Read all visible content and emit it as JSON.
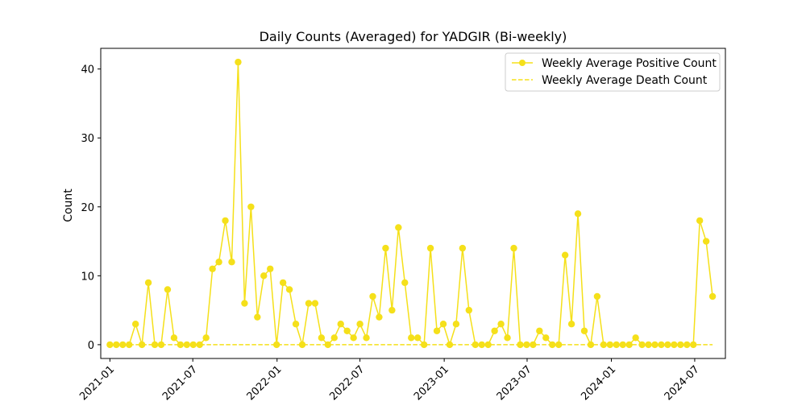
{
  "chart_data": {
    "type": "line",
    "title": "Daily Counts (Averaged) for YADGIR (Bi-weekly)",
    "xlabel": "",
    "ylabel": "Count",
    "ylim": [
      -2,
      43
    ],
    "xlim": [
      "2020-12-12",
      "2024-09-06"
    ],
    "grid": false,
    "legend_position": "top-right",
    "y_ticks": [
      0,
      10,
      20,
      30,
      40
    ],
    "x_ticks": [
      "2021-01",
      "2021-07",
      "2022-01",
      "2022-07",
      "2023-01",
      "2023-07",
      "2024-01",
      "2024-07"
    ],
    "colors": {
      "series": "#f5e01a",
      "axis": "#000000"
    },
    "start_date": "2021-01-01",
    "interval_days": 14,
    "series": [
      {
        "name": "Weekly Average Positive Count",
        "style": "solid-with-markers",
        "values": [
          0,
          0,
          0,
          0,
          3,
          0,
          9,
          0,
          0,
          8,
          1,
          0,
          0,
          0,
          0,
          1,
          11,
          12,
          18,
          12,
          41,
          6,
          20,
          4,
          10,
          11,
          0,
          9,
          8,
          3,
          0,
          6,
          6,
          1,
          0,
          1,
          3,
          2,
          1,
          3,
          1,
          7,
          4,
          14,
          5,
          17,
          9,
          1,
          1,
          0,
          14,
          2,
          3,
          0,
          3,
          14,
          5,
          0,
          0,
          0,
          2,
          3,
          1,
          14,
          0,
          0,
          0,
          2,
          1,
          0,
          0,
          13,
          3,
          19,
          2,
          0,
          7,
          0,
          0,
          0,
          0,
          0,
          1,
          0,
          0,
          0,
          0,
          0,
          0,
          0,
          0,
          0,
          18,
          15,
          7
        ]
      },
      {
        "name": "Weekly Average Death Count",
        "style": "dashed",
        "values": [
          0,
          0,
          0,
          0,
          0,
          0,
          0,
          0,
          0,
          0,
          0,
          0,
          0,
          0,
          0,
          0,
          0,
          0,
          0,
          0,
          0,
          0,
          0,
          0,
          0,
          0,
          0,
          0,
          0,
          0,
          0,
          0,
          0,
          0,
          0,
          0,
          0,
          0,
          0,
          0,
          0,
          0,
          0,
          0,
          0,
          0,
          0,
          0,
          0,
          0,
          0,
          0,
          0,
          0,
          0,
          0,
          0,
          0,
          0,
          0,
          0,
          0,
          0,
          0,
          0,
          0,
          0,
          0,
          0,
          0,
          0,
          0,
          0,
          0,
          0,
          0,
          0,
          0,
          0,
          0,
          0,
          0,
          0,
          0,
          0,
          0,
          0,
          0,
          0,
          0,
          0,
          0,
          0,
          0,
          0
        ]
      }
    ]
  }
}
